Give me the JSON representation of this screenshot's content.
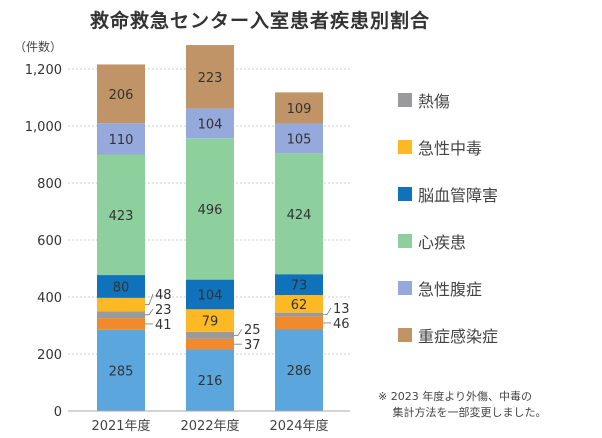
{
  "chart_data": {
    "type": "bar",
    "stacked": true,
    "title": "救命救急センター入室患者疾患別割合",
    "ylabel": "（件数）",
    "ylim": [
      0,
      1200
    ],
    "yticks": [
      "0",
      "200",
      "400",
      "600",
      "800",
      "1,000",
      "1,200"
    ],
    "ytick_values": [
      0,
      200,
      400,
      600,
      800,
      1000,
      1200
    ],
    "grid": true,
    "categories": [
      "2021年度",
      "2022年度",
      "2024年度"
    ],
    "series": [
      {
        "values": [
          285,
          216,
          286
        ],
        "color": "#5ba7dd"
      },
      {
        "values": [
          41,
          37,
          46
        ],
        "color": "#f08a2c"
      },
      {
        "name": "熱傷",
        "values": [
          23,
          25,
          13
        ],
        "color": "#999a9c"
      },
      {
        "name": "急性中毒",
        "values": [
          48,
          79,
          62
        ],
        "color": "#fdb924"
      },
      {
        "name": "脳血管障害",
        "values": [
          80,
          104,
          73
        ],
        "color": "#0f72ba"
      },
      {
        "name": "心疾患",
        "values": [
          423,
          496,
          424
        ],
        "color": "#8dcf9d"
      },
      {
        "name": "急性腹症",
        "values": [
          110,
          104,
          105
        ],
        "color": "#96a9dc"
      },
      {
        "name": "重症感染症",
        "values": [
          206,
          223,
          109
        ],
        "color": "#c09466"
      }
    ],
    "legend_placement": "right",
    "annotation": "※ 2023 年度より外傷、中毒の\n　 集計方法を一部変更しました。"
  }
}
